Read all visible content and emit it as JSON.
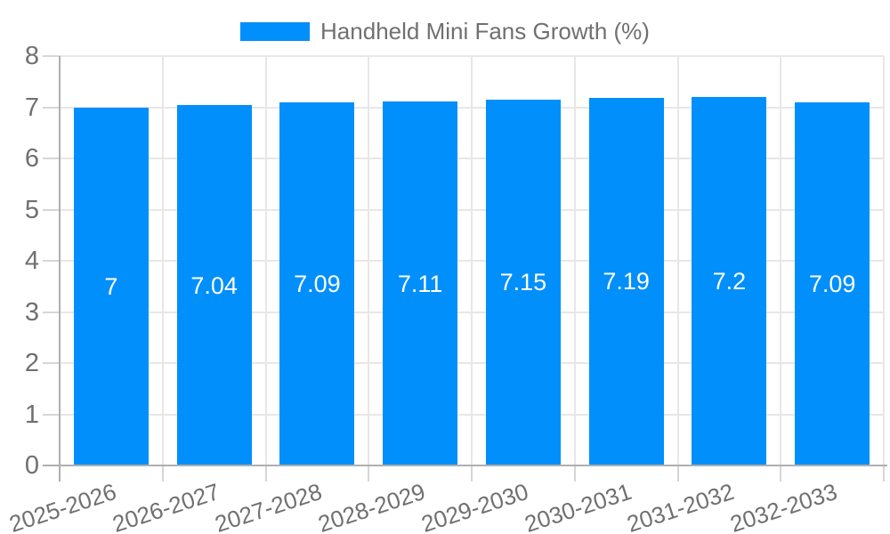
{
  "chart_data": {
    "type": "bar",
    "title": "Handheld Mini Fans Growth (%)",
    "legend_position": "top",
    "categories": [
      "2025-2026",
      "2026-2027",
      "2027-2028",
      "2028-2029",
      "2029-2030",
      "2030-2031",
      "2031-2032",
      "2032-2033"
    ],
    "values": [
      7,
      7.04,
      7.09,
      7.11,
      7.15,
      7.19,
      7.2,
      7.09
    ],
    "bar_labels": [
      "7",
      "7.04",
      "7.09",
      "7.11",
      "7.15",
      "7.19",
      "7.2",
      "7.09"
    ],
    "xlabel": "",
    "ylabel": "",
    "ylim": [
      0,
      8
    ],
    "yticks": [
      0,
      1,
      2,
      3,
      4,
      5,
      6,
      7,
      8
    ],
    "ytick_labels": [
      "0",
      "1",
      "2",
      "3",
      "4",
      "5",
      "6",
      "7",
      "8"
    ],
    "grid": true,
    "colors": {
      "bar": "#008FFB",
      "grid_line": "#E7E7E7",
      "tick_line": "#D6D6D6",
      "axis_line": "#AFAFAF",
      "axis_text": "#707070",
      "bar_label_text": "#FFFFFF",
      "background": "#FFFFFF"
    }
  }
}
